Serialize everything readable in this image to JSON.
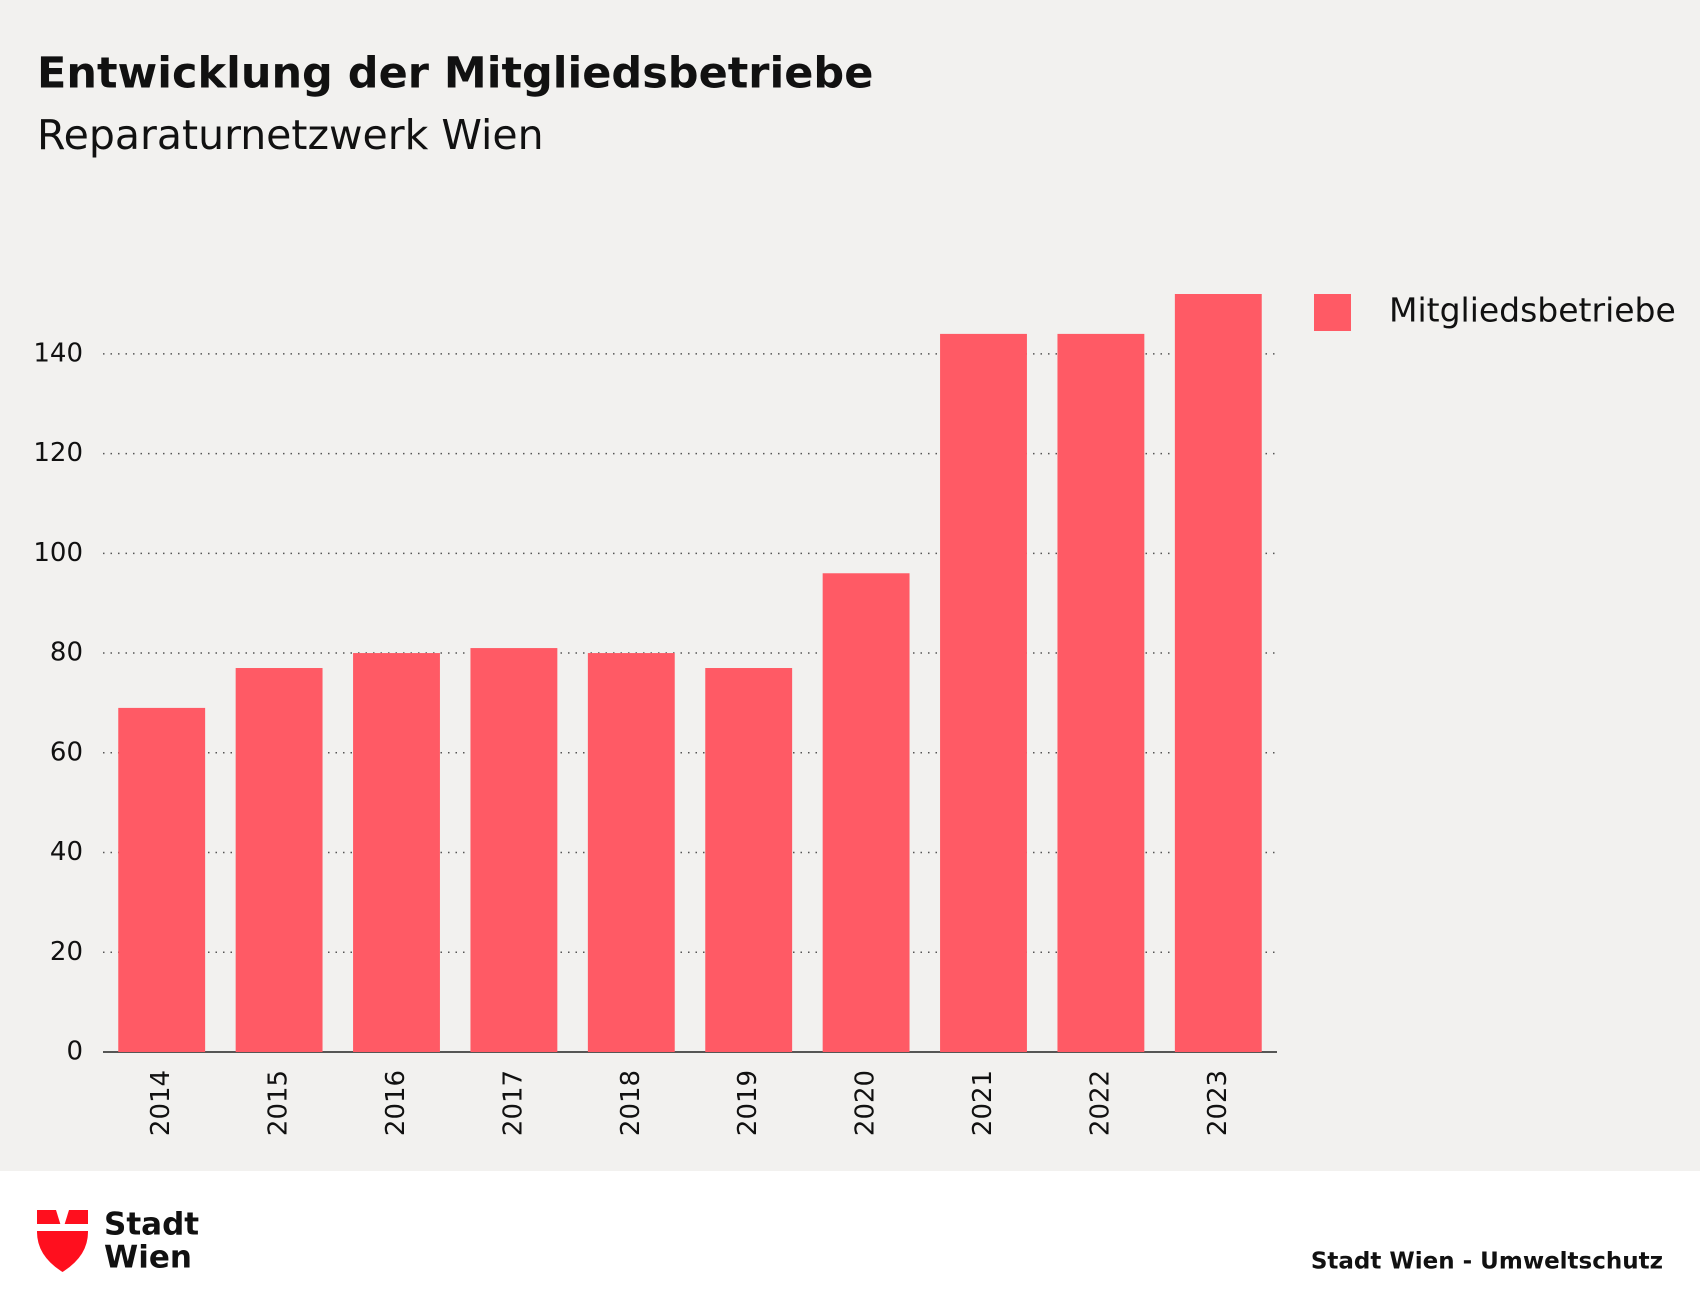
{
  "chart_data": {
    "type": "bar",
    "title": "Entwicklung der Mitgliedsbetriebe",
    "subtitle": "Reparaturnetzwerk Wien",
    "categories": [
      "2014",
      "2015",
      "2016",
      "2017",
      "2018",
      "2019",
      "2020",
      "2021",
      "2022",
      "2023"
    ],
    "series": [
      {
        "name": "Mitgliedsbetriebe",
        "color": "#ff5a65",
        "values": [
          69,
          77,
          80,
          81,
          80,
          77,
          96,
          144,
          144,
          152
        ]
      }
    ],
    "ylim": [
      0,
      152
    ],
    "yticks": [
      0,
      20,
      40,
      60,
      80,
      100,
      120,
      140
    ],
    "grid": true,
    "legend": "right",
    "source": "Stadt Wien - Umweltschutz"
  },
  "logo": {
    "line1": "Stadt",
    "line2": "Wien"
  }
}
